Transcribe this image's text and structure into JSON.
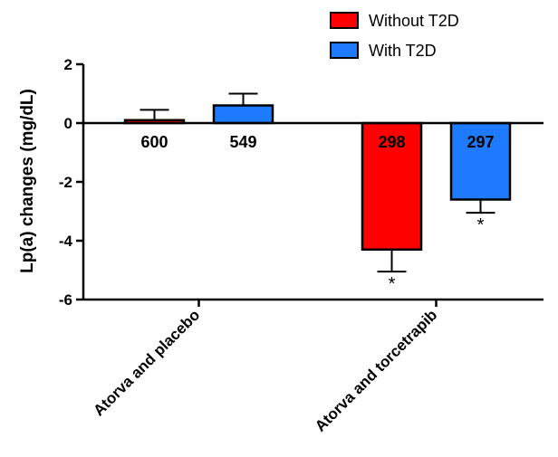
{
  "chart_data": {
    "type": "bar",
    "ylabel": "Lp(a) changes (mg/dL)",
    "xlabel": "",
    "ylim": [
      -6,
      2
    ],
    "yticks": [
      2,
      0,
      -2,
      -4,
      -6
    ],
    "grid": false,
    "legend_position": "top-right",
    "categories": [
      "Atorva and placebo",
      "Atorva and torcetrapib"
    ],
    "series": [
      {
        "name": "Without T2D",
        "color": "#ff0000",
        "values": [
          0.1,
          -4.3
        ],
        "errors": [
          0.35,
          0.75
        ],
        "labels": [
          "600",
          "298"
        ],
        "significance": [
          "",
          "*"
        ]
      },
      {
        "name": "With T2D",
        "color": "#1e7bff",
        "values": [
          0.6,
          -2.6
        ],
        "errors": [
          0.4,
          0.45
        ],
        "labels": [
          "549",
          "297"
        ],
        "significance": [
          "",
          "*"
        ]
      }
    ]
  }
}
